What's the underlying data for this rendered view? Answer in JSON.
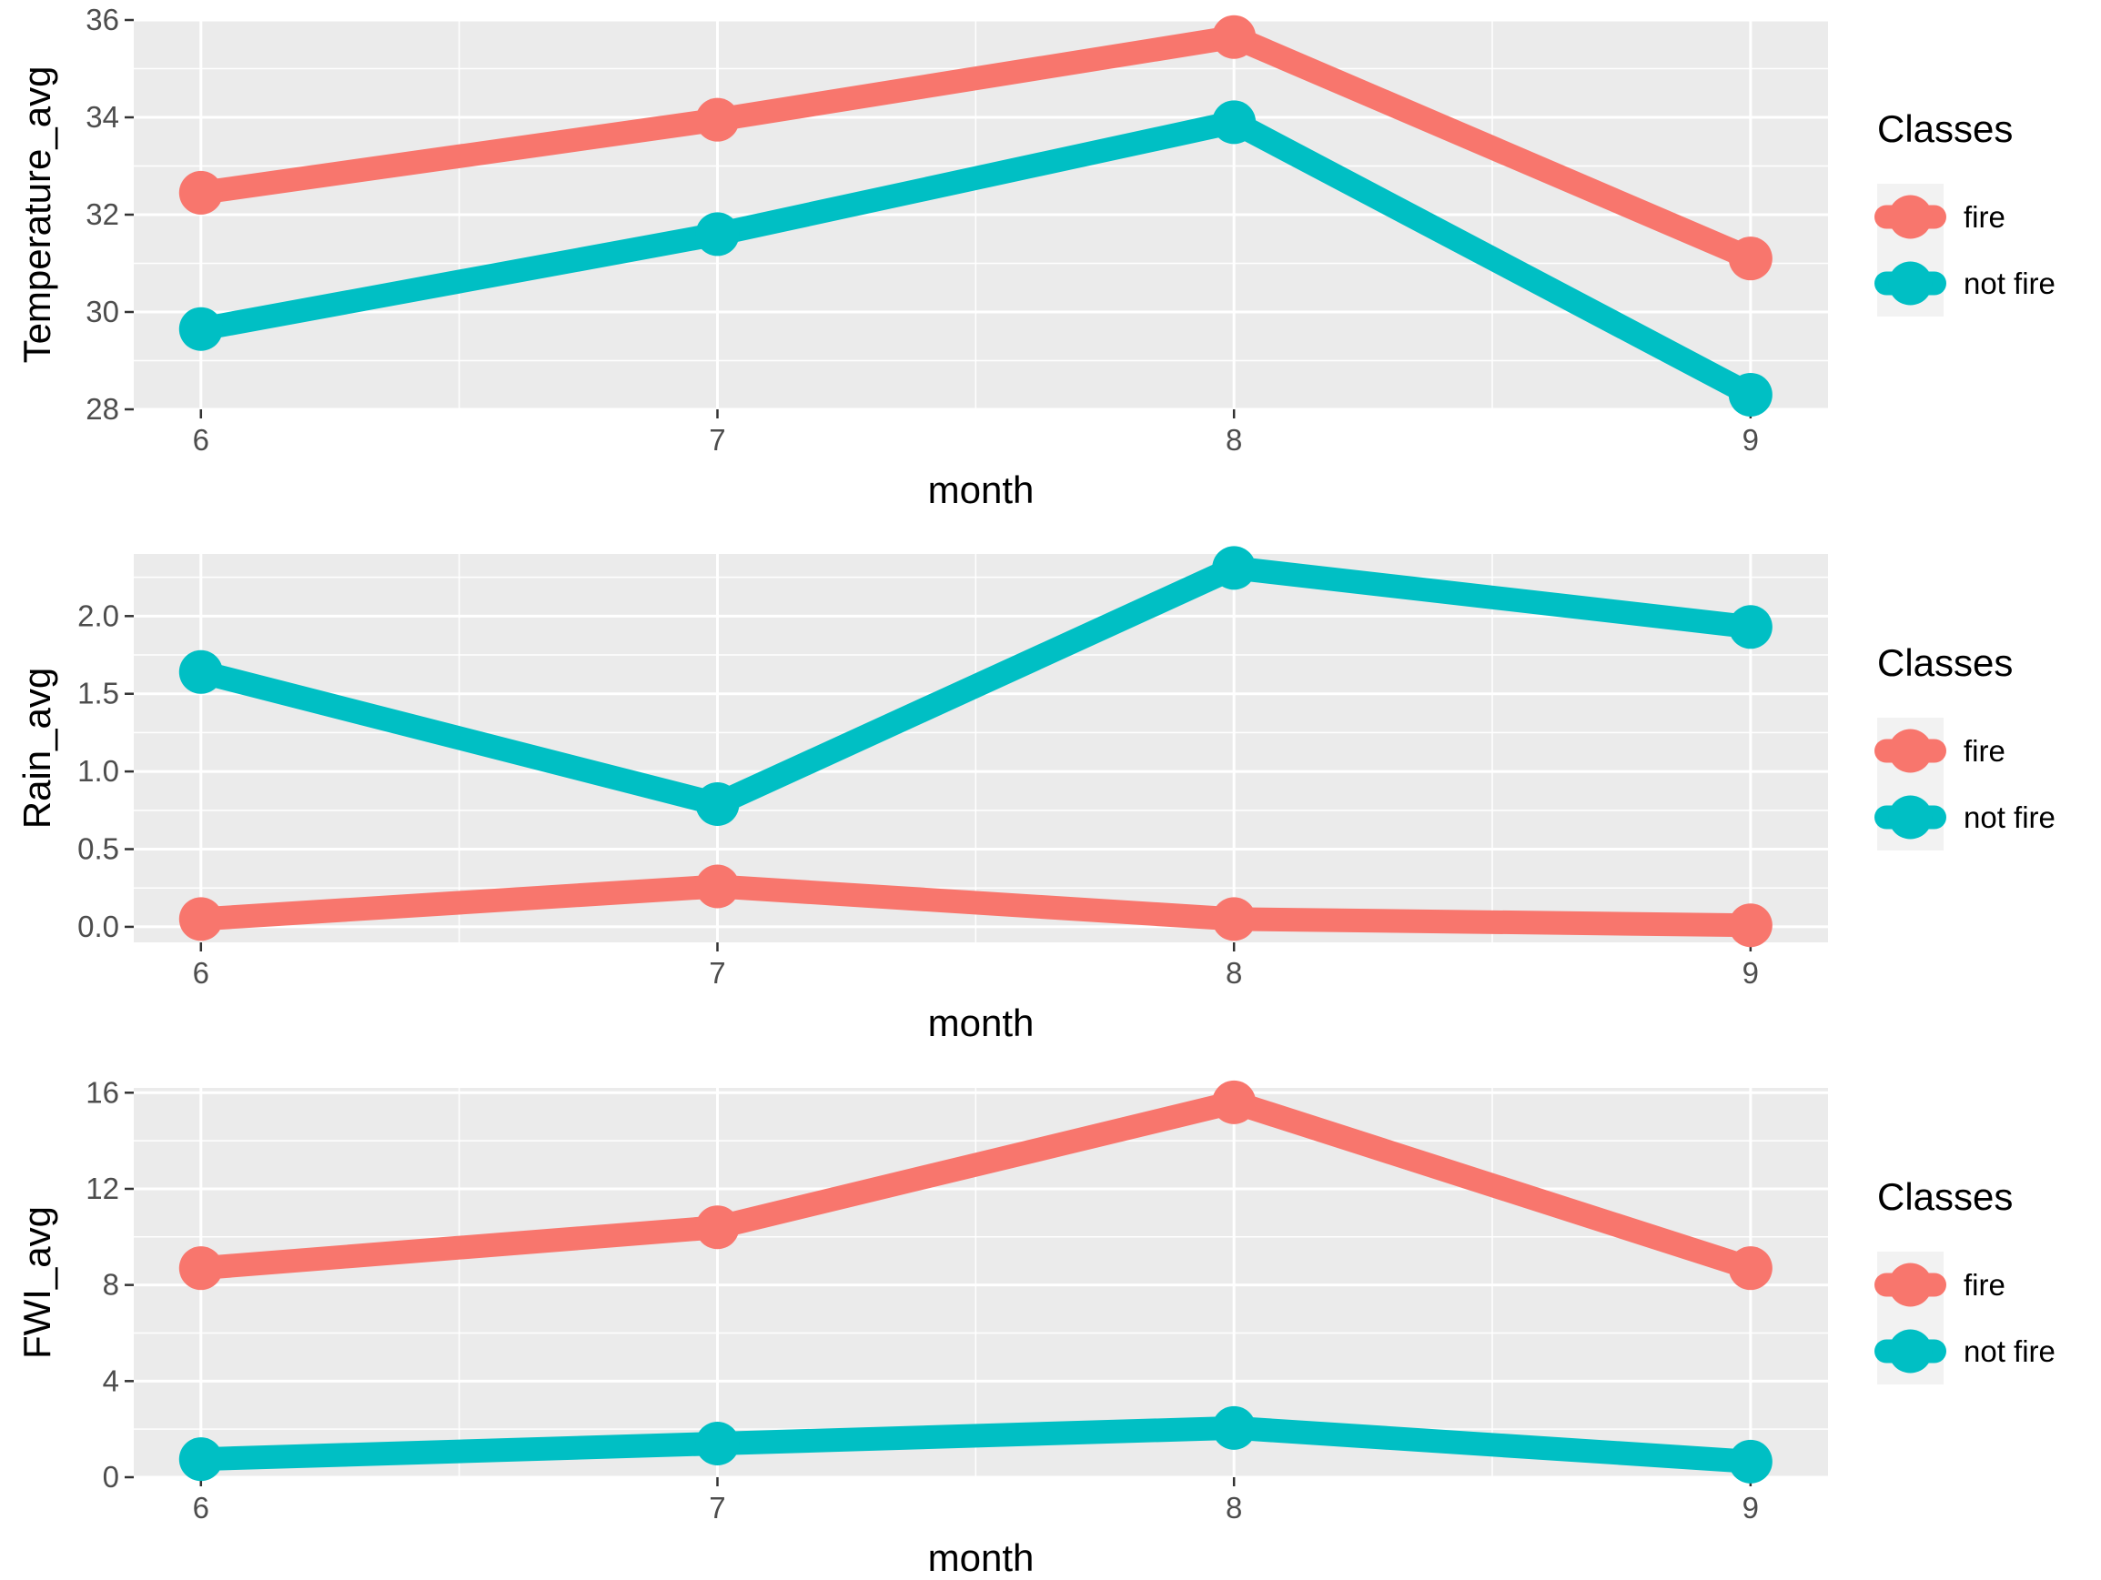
{
  "colors": {
    "fire": "#F8766D",
    "not_fire": "#00BFC4"
  },
  "chart_data": [
    {
      "type": "line",
      "xlabel": "month",
      "ylabel": "Temperature_avg",
      "x": [
        6,
        7,
        8,
        9
      ],
      "ylim": [
        28,
        36
      ],
      "y_ticks": [
        28,
        30,
        32,
        34,
        36
      ],
      "y_tick_labels": [
        "28",
        "30",
        "32",
        "34",
        "36"
      ],
      "legend_title": "Classes",
      "legend_position": "right",
      "series": [
        {
          "name": "fire",
          "color": "#F8766D",
          "values": [
            32.45,
            33.95,
            35.65,
            31.1
          ]
        },
        {
          "name": "not fire",
          "color": "#00BFC4",
          "values": [
            29.65,
            31.6,
            33.9,
            28.3
          ]
        }
      ]
    },
    {
      "type": "line",
      "xlabel": "month",
      "ylabel": "Rain_avg",
      "x": [
        6,
        7,
        8,
        9
      ],
      "ylim": [
        -0.1,
        2.4
      ],
      "y_ticks": [
        0,
        0.5,
        1,
        1.5,
        2
      ],
      "y_tick_labels": [
        "0.0",
        "0.5",
        "1.0",
        "1.5",
        "2.0"
      ],
      "legend_title": "Classes",
      "legend_position": "right",
      "series": [
        {
          "name": "fire",
          "color": "#F8766D",
          "values": [
            0.05,
            0.26,
            0.05,
            0.01
          ]
        },
        {
          "name": "not fire",
          "color": "#00BFC4",
          "values": [
            1.64,
            0.79,
            2.31,
            1.93
          ]
        }
      ]
    },
    {
      "type": "line",
      "xlabel": "month",
      "ylabel": "FWI_avg",
      "x": [
        6,
        7,
        8,
        9
      ],
      "ylim": [
        0,
        16.2
      ],
      "y_ticks": [
        0,
        4,
        8,
        12,
        16
      ],
      "y_tick_labels": [
        "0",
        "4",
        "8",
        "12",
        "16"
      ],
      "legend_title": "Classes",
      "legend_position": "right",
      "series": [
        {
          "name": "fire",
          "color": "#F8766D",
          "values": [
            8.7,
            10.4,
            15.6,
            8.7
          ]
        },
        {
          "name": "not fire",
          "color": "#00BFC4",
          "values": [
            0.75,
            1.4,
            2.05,
            0.65
          ]
        }
      ]
    }
  ]
}
